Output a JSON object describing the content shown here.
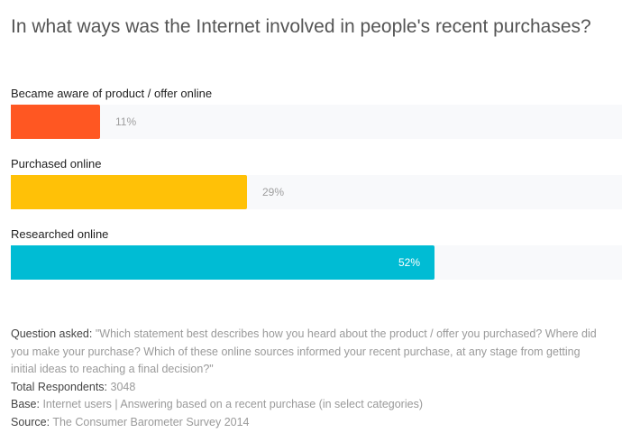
{
  "chart_data": {
    "type": "bar",
    "orientation": "horizontal",
    "title": "In what ways was the Internet involved in people's recent purchases?",
    "categories": [
      "Became aware of product / offer online",
      "Purchased online",
      "Researched online"
    ],
    "values": [
      11,
      29,
      52
    ],
    "value_labels": [
      "11%",
      "29%",
      "52%"
    ],
    "colors": [
      "#ff5722",
      "#ffc107",
      "#00bcd4"
    ],
    "xlim": [
      0,
      75
    ],
    "grid": false,
    "legend": "none"
  },
  "notes": {
    "question_label": "Question asked:",
    "question_text": "\"Which statement best describes how you heard about the product / offer you purchased? Where did you make your purchase? Which of these online sources informed your recent purchase, at any stage from getting initial ideas to reaching a final decision?\"",
    "respondents_label": "Total Respondents:",
    "respondents_value": "3048",
    "base_label": "Base:",
    "base_value": "Internet users | Answering based on a recent purchase (in select categories)",
    "source_label": "Source:",
    "source_value": "The Consumer Barometer Survey 2014"
  }
}
